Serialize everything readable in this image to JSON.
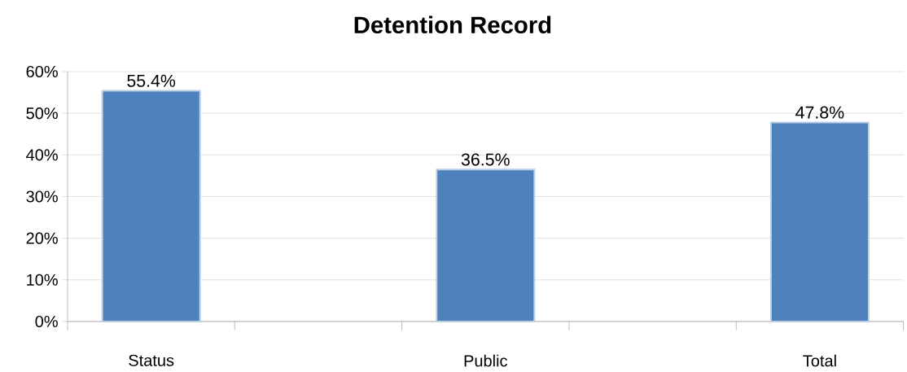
{
  "chart_data": {
    "type": "bar",
    "title": "Detention Record",
    "categories": [
      "Status",
      null,
      "Public",
      null,
      "Total"
    ],
    "values": [
      55.4,
      null,
      36.5,
      null,
      47.8
    ],
    "value_labels": [
      "55.4%",
      null,
      "36.5%",
      null,
      "47.8%"
    ],
    "color": "#4f81bd",
    "ylim": [
      0,
      60
    ],
    "yticks": [
      {
        "value": 0,
        "label": "0%"
      },
      {
        "value": 10,
        "label": "10%"
      },
      {
        "value": 20,
        "label": "20%"
      },
      {
        "value": 30,
        "label": "30%"
      },
      {
        "value": 40,
        "label": "40%"
      },
      {
        "value": 50,
        "label": "50%"
      },
      {
        "value": 60,
        "label": "60%"
      }
    ],
    "grid": "y"
  }
}
